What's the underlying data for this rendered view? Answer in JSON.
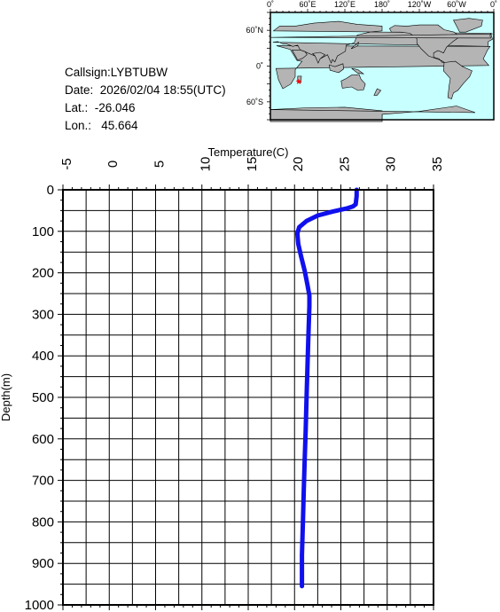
{
  "info": {
    "callsign": "Callsign:LYBTUBW",
    "date": "Date:  2026/02/04 18:55(UTC)",
    "lat": "Lat.:  -26.046",
    "lon": "Lon.:   45.664"
  },
  "map": {
    "lon_ticks": [
      "0˚",
      "60˚E",
      "120˚E",
      "180˚",
      "120˚W",
      "60˚W",
      "0˚"
    ],
    "lat_ticks": [
      "60˚N",
      "0˚",
      "60˚S"
    ],
    "ocean_color": "#c8ffff",
    "land_color": "#b4b4b4",
    "marker_color": "#ff0000",
    "marker": {
      "lat": -26.046,
      "lon": 45.664
    }
  },
  "chart_data": {
    "type": "line",
    "xlabel": "Temperature(C)",
    "ylabel": "Depth(m)",
    "xlim": [
      -5,
      35
    ],
    "ylim": [
      0,
      1000
    ],
    "y_inverted": true,
    "x_ticks": [
      "-5",
      "0",
      "5",
      "10",
      "15",
      "20",
      "25",
      "30",
      "35"
    ],
    "y_ticks": [
      "0",
      "100",
      "200",
      "300",
      "400",
      "500",
      "600",
      "700",
      "800",
      "900",
      "1000"
    ],
    "grid": true,
    "line_color": "#1010ee",
    "series": [
      {
        "x": [
          26.7,
          26.7,
          26.6,
          26.3,
          25.6,
          24.2,
          22.5,
          21.3,
          20.5,
          20.3,
          20.4,
          20.7,
          21.1,
          21.4,
          21.6,
          21.6,
          21.5,
          21.4,
          21.3,
          21.2,
          21.1,
          21.0,
          20.9,
          20.8,
          20.8
        ],
        "y": [
          0,
          15,
          35,
          40,
          45,
          52,
          62,
          75,
          90,
          105,
          130,
          160,
          195,
          230,
          255,
          280,
          350,
          420,
          500,
          580,
          650,
          720,
          800,
          880,
          955
        ]
      }
    ]
  }
}
